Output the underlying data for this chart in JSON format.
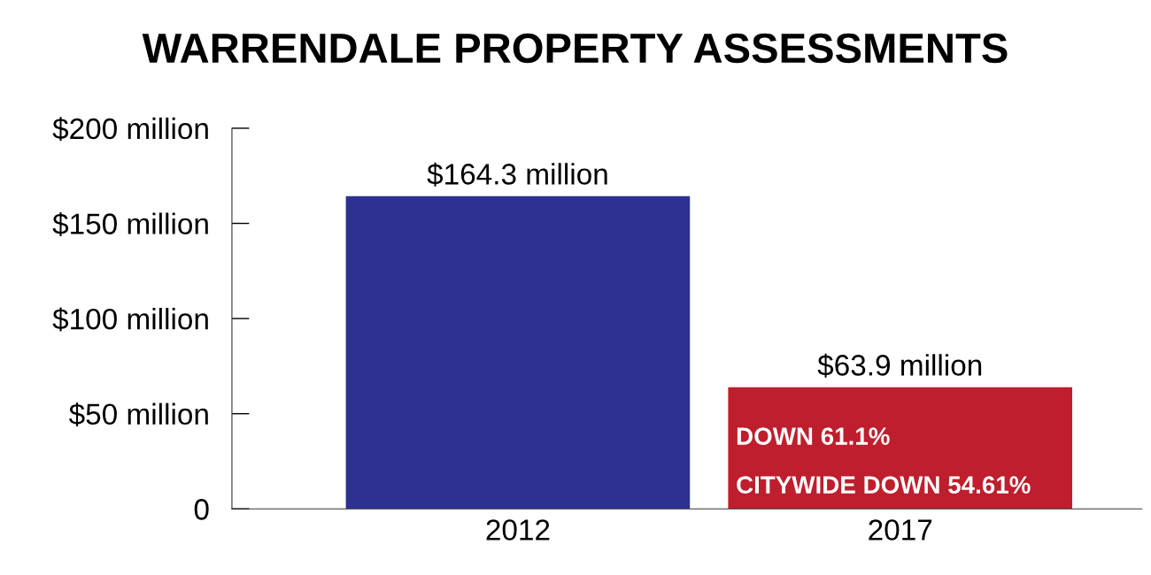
{
  "chart_data": {
    "type": "bar",
    "title": "WARRENDALE PROPERTY ASSESSMENTS",
    "categories": [
      "2012",
      "2017"
    ],
    "values": [
      164.3,
      63.9
    ],
    "colors": [
      "#2e3192",
      "#be1e2d"
    ],
    "value_labels": [
      "$164.3 million",
      "$63.9 million"
    ],
    "ylim": [
      0,
      200
    ],
    "yticks": [
      0,
      {
        "value": 50,
        "label": "$50 million"
      },
      {
        "value": 100,
        "label": "$100 million"
      },
      {
        "value": 150,
        "label": "$150 million"
      },
      {
        "value": 200,
        "label": "$200 million"
      }
    ],
    "grid": false,
    "legend": false,
    "annotations": [
      "DOWN 61.1%",
      "CITYWIDE DOWN 54.61%"
    ]
  }
}
